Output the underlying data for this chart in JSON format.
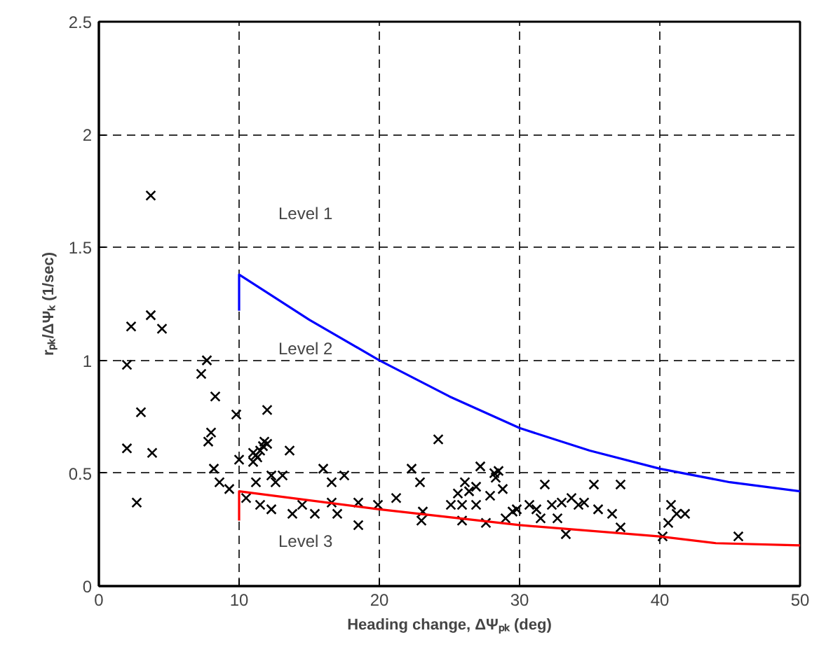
{
  "chart_data": {
    "type": "scatter",
    "xlabel": "Heading change, ΔΨₚₖ (deg)",
    "ylabel": "rₚₖ/ΔΨₖ (1/sec)",
    "xlim": [
      0,
      50
    ],
    "ylim": [
      0,
      2.5
    ],
    "xticks": [
      0,
      10,
      20,
      30,
      40,
      50
    ],
    "yticks": [
      0,
      0.5,
      1,
      1.5,
      2,
      2.5
    ],
    "grid": true,
    "marker": "cross",
    "series": [
      {
        "color": "#000000",
        "x": [
          2,
          2,
          2.3,
          2.7,
          3,
          3.7,
          3.7,
          3.8,
          4.5,
          7.3,
          7.7,
          7.8,
          8,
          8.2,
          8.3,
          8.6,
          9.3,
          9.8,
          10,
          10.5,
          11,
          11,
          11.2,
          11.3,
          11.5,
          11.7,
          12,
          12,
          11.2,
          11.5,
          11.8,
          13.6,
          12.3,
          13.1,
          12.6,
          12.3,
          13.8,
          14.5,
          15.4,
          16.0,
          16.6,
          16.6,
          17.0,
          17.5,
          18.5,
          18.5,
          19.9,
          21.2,
          22.3,
          22.9,
          23.1,
          23.0,
          24.2,
          25.1,
          25.6,
          26.1,
          25.9,
          25.9,
          26.4,
          26.9,
          26.9,
          27.2,
          27.6,
          27.9,
          28.2,
          28.3,
          28.5,
          28.8,
          29.0,
          29.5,
          29.8,
          30.7,
          31.2,
          31.5,
          31.8,
          32.3,
          32.7,
          33.3,
          33.0,
          33.7,
          34.2,
          34.6,
          35.3,
          35.6,
          36.6,
          37.2,
          37.2,
          40.2,
          40.6,
          40.8,
          41.2,
          41.8,
          45.6
        ],
        "values": [
          0.98,
          0.61,
          1.15,
          0.37,
          0.77,
          1.73,
          1.2,
          0.59,
          1.14,
          0.94,
          1.0,
          0.64,
          0.68,
          0.52,
          0.84,
          0.46,
          0.43,
          0.76,
          0.56,
          0.39,
          0.59,
          0.55,
          0.58,
          0.57,
          0.6,
          0.62,
          0.63,
          0.78,
          0.46,
          0.36,
          0.64,
          0.6,
          0.49,
          0.49,
          0.46,
          0.34,
          0.32,
          0.36,
          0.32,
          0.52,
          0.46,
          0.37,
          0.32,
          0.49,
          0.37,
          0.27,
          0.36,
          0.39,
          0.52,
          0.46,
          0.33,
          0.29,
          0.65,
          0.36,
          0.41,
          0.46,
          0.36,
          0.29,
          0.42,
          0.44,
          0.36,
          0.53,
          0.28,
          0.4,
          0.5,
          0.48,
          0.51,
          0.43,
          0.3,
          0.33,
          0.34,
          0.36,
          0.34,
          0.3,
          0.45,
          0.36,
          0.3,
          0.23,
          0.37,
          0.39,
          0.36,
          0.37,
          0.45,
          0.34,
          0.32,
          0.45,
          0.26,
          0.22,
          0.28,
          0.36,
          0.32,
          0.32,
          0.22
        ]
      },
      {
        "type": "line",
        "color": "#0000ff",
        "marker": "none",
        "x": [
          10,
          10,
          12,
          15,
          20,
          25,
          30,
          35,
          40,
          45,
          50
        ],
        "values": [
          1.22,
          1.38,
          1.3,
          1.18,
          1.0,
          0.84,
          0.7,
          0.6,
          0.52,
          0.46,
          0.42
        ]
      },
      {
        "type": "line",
        "color": "#ff0000",
        "marker": "none",
        "x": [
          10,
          10,
          20,
          30,
          40,
          44,
          50
        ],
        "values": [
          0.29,
          0.42,
          0.34,
          0.27,
          0.22,
          0.19,
          0.18
        ]
      }
    ],
    "annotations": [
      "Level 1",
      "Level 2",
      "Level 3"
    ]
  }
}
